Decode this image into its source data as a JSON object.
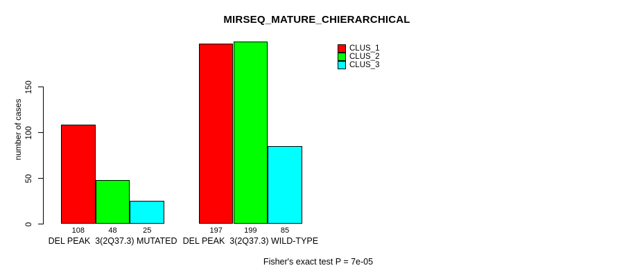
{
  "title": "MIRSEQ_MATURE_CHIERARCHICAL",
  "ylabel": "number of cases",
  "footer": "Fisher's exact test P = 7e-05",
  "legend": {
    "items": [
      {
        "label": "CLUS_1",
        "color": "#ff0000"
      },
      {
        "label": "CLUS_2",
        "color": "#00ff00"
      },
      {
        "label": "CLUS_3",
        "color": "#00ffff"
      }
    ]
  },
  "chart_data": {
    "type": "bar",
    "title": "MIRSEQ_MATURE_CHIERARCHICAL",
    "ylabel": "number of cases",
    "xlabel": "",
    "categories": [
      "DEL PEAK  3(2Q37.3) MUTATED",
      "DEL PEAK  3(2Q37.3) WILD-TYPE"
    ],
    "series": [
      {
        "name": "CLUS_1",
        "color": "#ff0000",
        "values": [
          108,
          197
        ]
      },
      {
        "name": "CLUS_2",
        "color": "#00ff00",
        "values": [
          48,
          199
        ]
      },
      {
        "name": "CLUS_3",
        "color": "#00ffff",
        "values": [
          25,
          85
        ]
      }
    ],
    "bar_value_labels": [
      [
        108,
        48,
        25
      ],
      [
        197,
        199,
        85
      ]
    ],
    "yticks": [
      0,
      50,
      100,
      150
    ],
    "ylim": [
      0,
      205
    ],
    "grid": false,
    "legend_position": "top-right",
    "annotation": "Fisher's exact test P = 7e-05"
  }
}
